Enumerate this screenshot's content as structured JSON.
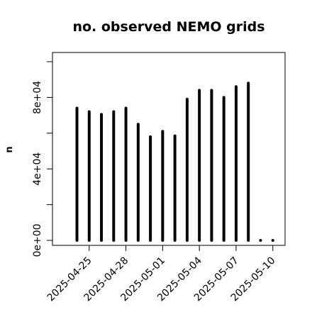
{
  "chart_data": {
    "type": "bar",
    "title": "no. observed NEMO grids",
    "xlabel": "",
    "ylabel": "n",
    "x_start_date": "2025-04-24",
    "dates": [
      "2025-04-24",
      "2025-04-25",
      "2025-04-26",
      "2025-04-27",
      "2025-04-28",
      "2025-04-29",
      "2025-04-30",
      "2025-05-01",
      "2025-05-02",
      "2025-05-03",
      "2025-05-04",
      "2025-05-05",
      "2025-05-06",
      "2025-05-07",
      "2025-05-08",
      "2025-05-09",
      "2025-05-10"
    ],
    "values": [
      74000,
      72000,
      70500,
      72000,
      74000,
      65000,
      58000,
      61000,
      58500,
      79000,
      84000,
      84000,
      80000,
      86000,
      88000,
      0,
      0
    ],
    "xlim": [
      "2025-04-22",
      "2025-05-11"
    ],
    "ylim": [
      0,
      100000
    ],
    "y_ticks": [
      0,
      40000,
      80000
    ],
    "y_tick_labels": [
      "0e+00",
      "4e+04",
      "8e+04"
    ],
    "y_minor_ticks": [
      20000,
      60000,
      100000
    ],
    "x_ticks": [
      "2025-04-25",
      "2025-04-28",
      "2025-05-01",
      "2025-05-04",
      "2025-05-07",
      "2025-05-10"
    ],
    "x_tick_labels": [
      "2025-04-25",
      "2025-04-28",
      "2025-05-01",
      "2025-05-04",
      "2025-05-07",
      "2025-05-10"
    ],
    "grid": false,
    "legend": "none",
    "bar_color": "#000000"
  }
}
